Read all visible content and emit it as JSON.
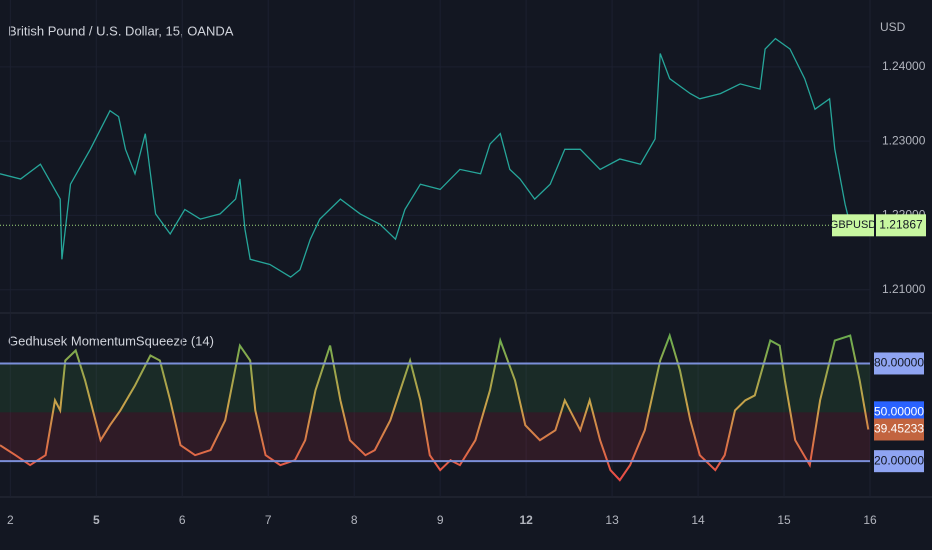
{
  "chart_data": [
    {
      "type": "line",
      "title": "British Pound / U.S. Dollar, 15, OANDA",
      "ylabel": "USD",
      "color": "#26a69a",
      "x": [
        -0.12,
        0.12,
        0.35,
        0.58,
        0.6,
        0.7,
        0.93,
        1.16,
        1.26,
        1.34,
        1.45,
        1.57,
        1.69,
        1.86,
        2.03,
        2.21,
        2.44,
        2.62,
        2.67,
        2.73,
        2.79,
        3.02,
        3.26,
        3.37,
        3.49,
        3.6,
        3.84,
        4.07,
        4.3,
        4.48,
        4.59,
        4.77,
        5.0,
        5.23,
        5.47,
        5.58,
        5.7,
        5.81,
        5.93,
        6.1,
        6.28,
        6.45,
        6.63,
        6.86,
        7.09,
        7.33,
        7.5,
        7.56,
        7.67,
        7.91,
        8.02,
        8.26,
        8.49,
        8.72,
        8.78,
        8.9,
        9.07,
        9.24,
        9.36,
        9.53,
        9.59,
        9.71,
        9.77
      ],
      "values": [
        1.2256,
        1.2249,
        1.2269,
        1.2222,
        1.2141,
        1.2242,
        1.2289,
        1.2341,
        1.2333,
        1.2289,
        1.2256,
        1.231,
        1.2202,
        1.2175,
        1.2208,
        1.2195,
        1.2202,
        1.2222,
        1.2249,
        1.2181,
        1.2141,
        1.2134,
        1.2117,
        1.2127,
        1.2168,
        1.2195,
        1.2222,
        1.2202,
        1.2188,
        1.2168,
        1.2208,
        1.2242,
        1.2235,
        1.2262,
        1.2256,
        1.2296,
        1.231,
        1.2262,
        1.2249,
        1.2222,
        1.2242,
        1.2289,
        1.2289,
        1.2262,
        1.2276,
        1.2269,
        1.2303,
        1.2418,
        1.2384,
        1.2364,
        1.2357,
        1.2364,
        1.2377,
        1.237,
        1.2424,
        1.2438,
        1.2424,
        1.2384,
        1.2343,
        1.2357,
        1.2289,
        1.2215,
        1.2187
      ],
      "xlim": [
        -0.12,
        10.0
      ],
      "ylim": [
        1.207,
        1.249
      ],
      "yticks": [
        {
          "value": 1.21,
          "label": "1.21000"
        },
        {
          "value": 1.22,
          "label": "1.22000"
        },
        {
          "value": 1.23,
          "label": "1.23000"
        },
        {
          "value": 1.24,
          "label": "1.24000"
        }
      ],
      "last_price": {
        "symbol": "GBPUSD",
        "value": 1.21867,
        "label": "1.21867",
        "color": "#c8f7a0"
      }
    },
    {
      "type": "line",
      "title": "Gedhusek MomentumSqueeze (14)",
      "colors": [
        "#4caf50",
        "#f23645"
      ],
      "x": [
        -0.12,
        0.06,
        0.23,
        0.41,
        0.52,
        0.58,
        0.64,
        0.76,
        0.87,
        0.99,
        1.05,
        1.16,
        1.28,
        1.45,
        1.63,
        1.74,
        1.86,
        1.98,
        2.15,
        2.33,
        2.5,
        2.67,
        2.79,
        2.85,
        2.97,
        3.14,
        3.31,
        3.43,
        3.55,
        3.72,
        3.84,
        3.95,
        4.13,
        4.24,
        4.42,
        4.65,
        4.77,
        4.88,
        5.0,
        5.12,
        5.23,
        5.41,
        5.58,
        5.7,
        5.87,
        5.99,
        6.16,
        6.34,
        6.45,
        6.63,
        6.74,
        6.86,
        6.98,
        7.09,
        7.21,
        7.38,
        7.56,
        7.67,
        7.79,
        7.91,
        8.02,
        8.2,
        8.31,
        8.43,
        8.55,
        8.66,
        8.84,
        8.95,
        9.01,
        9.13,
        9.3,
        9.42,
        9.59,
        9.77,
        9.88,
        9.98
      ],
      "values": [
        29.8,
        23.7,
        17.6,
        23.7,
        57.4,
        51.2,
        81.8,
        88.0,
        69.6,
        45.1,
        32.9,
        42.1,
        51.2,
        66.5,
        84.9,
        81.8,
        57.4,
        29.8,
        23.7,
        26.8,
        45.1,
        91.0,
        81.8,
        51.2,
        23.7,
        17.6,
        20.6,
        32.9,
        63.5,
        91.0,
        57.4,
        32.9,
        23.7,
        26.8,
        45.1,
        81.8,
        57.4,
        23.7,
        14.5,
        20.6,
        17.6,
        32.9,
        63.5,
        94.1,
        69.6,
        42.1,
        32.9,
        39.0,
        57.4,
        39.0,
        57.4,
        32.9,
        14.5,
        8.4,
        17.6,
        39.0,
        81.8,
        97.1,
        75.7,
        45.1,
        23.7,
        14.5,
        23.7,
        51.2,
        57.4,
        60.4,
        94.1,
        91.0,
        69.6,
        32.9,
        17.6,
        57.4,
        94.1,
        97.1,
        69.6,
        39.45233
      ],
      "xlim": [
        -0.12,
        10.0
      ],
      "ylim": [
        -2,
        111
      ],
      "yticks": [
        {
          "value": 80,
          "label": "80.00000"
        },
        {
          "value": 50,
          "label": "50.00000"
        },
        {
          "value": 20,
          "label": "20.00000"
        }
      ],
      "xticks": [
        {
          "value": 0,
          "label": "2"
        },
        {
          "value": 1,
          "label": "5"
        },
        {
          "value": 2,
          "label": "6"
        },
        {
          "value": 3,
          "label": "7"
        },
        {
          "value": 4,
          "label": "8"
        },
        {
          "value": 5,
          "label": "9"
        },
        {
          "value": 6,
          "label": "12"
        },
        {
          "value": 7,
          "label": "13"
        },
        {
          "value": 8,
          "label": "14"
        },
        {
          "value": 9,
          "label": "15"
        },
        {
          "value": 10,
          "label": "16"
        }
      ]
    }
  ]
}
